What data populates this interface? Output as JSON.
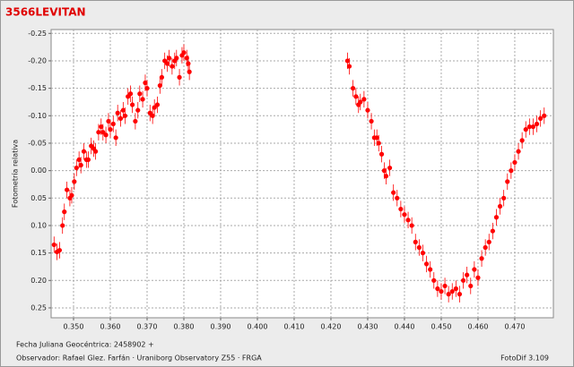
{
  "chart_data": {
    "type": "scatter",
    "title": "3566LEVITAN",
    "y_label": "Fotometría relativa",
    "x_label": "Fecha Juliana Geocéntrica: 2458902 +",
    "footer": "Observador: Rafael Glez. Farfán  ·  Uraniborg Observatory Z55 · FRGA",
    "software": "FotoDif 3.109",
    "color": "#ff0000",
    "error": 0.015,
    "y_inverted": true,
    "grid": true,
    "xlim": [
      0.3439,
      0.4805
    ],
    "ylim": [
      -0.257,
      0.268
    ],
    "xticks": [
      {
        "value": 0.35,
        "label": "0.350"
      },
      {
        "value": 0.36,
        "label": "0.360"
      },
      {
        "value": 0.37,
        "label": "0.370"
      },
      {
        "value": 0.38,
        "label": "0.380"
      },
      {
        "value": 0.39,
        "label": "0.390"
      },
      {
        "value": 0.4,
        "label": "0.400"
      },
      {
        "value": 0.41,
        "label": "0.410"
      },
      {
        "value": 0.42,
        "label": "0.420"
      },
      {
        "value": 0.43,
        "label": "0.430"
      },
      {
        "value": 0.44,
        "label": "0.440"
      },
      {
        "value": 0.45,
        "label": "0.450"
      },
      {
        "value": 0.46,
        "label": "0.460"
      },
      {
        "value": 0.47,
        "label": "0.470"
      }
    ],
    "yticks": [
      -0.25,
      {
        "value": -0.2,
        "label": "-0.20"
      },
      -0.15,
      {
        "value": -0.1,
        "label": "-0.10"
      },
      -0.05,
      {
        "value": 0,
        "label": "0.00"
      },
      0.05,
      {
        "value": 0.1,
        "label": "0.10"
      },
      0.15,
      {
        "value": 0.2,
        "label": "0.20"
      },
      0.25
    ],
    "x": [
      0.3447,
      0.3455,
      0.3462,
      0.347,
      0.3475,
      0.3482,
      0.349,
      0.3495,
      0.3502,
      0.3508,
      0.3515,
      0.352,
      0.3528,
      0.3535,
      0.354,
      0.3548,
      0.3555,
      0.356,
      0.3568,
      0.3575,
      0.358,
      0.3588,
      0.3595,
      0.36,
      0.3608,
      0.3615,
      0.362,
      0.3628,
      0.3635,
      0.364,
      0.3648,
      0.3655,
      0.366,
      0.3668,
      0.3675,
      0.368,
      0.3688,
      0.3695,
      0.37,
      0.3708,
      0.3715,
      0.372,
      0.3728,
      0.3735,
      0.374,
      0.3748,
      0.3755,
      0.376,
      0.3768,
      0.3775,
      0.378,
      0.3788,
      0.3795,
      0.38,
      0.3808,
      0.3812,
      0.3815,
      0.4245,
      0.425,
      0.426,
      0.4268,
      0.4275,
      0.428,
      0.429,
      0.43,
      0.431,
      0.4318,
      0.4325,
      0.433,
      0.4338,
      0.4345,
      0.435,
      0.436,
      0.437,
      0.438,
      0.439,
      0.44,
      0.441,
      0.442,
      0.443,
      0.444,
      0.445,
      0.446,
      0.447,
      0.448,
      0.449,
      0.45,
      0.451,
      0.452,
      0.453,
      0.454,
      0.455,
      0.456,
      0.457,
      0.458,
      0.459,
      0.46,
      0.461,
      0.462,
      0.463,
      0.464,
      0.465,
      0.466,
      0.467,
      0.468,
      0.469,
      0.47,
      0.471,
      0.472,
      0.473,
      0.474,
      0.475,
      0.476,
      0.477,
      0.478
    ],
    "values": [
      0.135,
      0.148,
      0.145,
      0.1,
      0.075,
      0.035,
      0.05,
      0.045,
      0.02,
      -0.005,
      -0.02,
      -0.01,
      -0.035,
      -0.02,
      -0.02,
      -0.045,
      -0.04,
      -0.035,
      -0.07,
      -0.08,
      -0.07,
      -0.065,
      -0.09,
      -0.075,
      -0.085,
      -0.06,
      -0.105,
      -0.095,
      -0.11,
      -0.1,
      -0.135,
      -0.14,
      -0.12,
      -0.09,
      -0.11,
      -0.14,
      -0.13,
      -0.16,
      -0.15,
      -0.105,
      -0.1,
      -0.115,
      -0.12,
      -0.155,
      -0.17,
      -0.2,
      -0.195,
      -0.205,
      -0.19,
      -0.2,
      -0.205,
      -0.17,
      -0.21,
      -0.215,
      -0.205,
      -0.195,
      -0.18,
      -0.2,
      -0.19,
      -0.15,
      -0.135,
      -0.12,
      -0.125,
      -0.13,
      -0.11,
      -0.09,
      -0.06,
      -0.06,
      -0.05,
      -0.03,
      0,
      0.01,
      -0.005,
      0.04,
      0.05,
      0.07,
      0.08,
      0.09,
      0.1,
      0.13,
      0.14,
      0.15,
      0.17,
      0.18,
      0.2,
      0.215,
      0.22,
      0.21,
      0.225,
      0.22,
      0.215,
      0.225,
      0.2,
      0.19,
      0.21,
      0.18,
      0.195,
      0.16,
      0.14,
      0.13,
      0.11,
      0.085,
      0.065,
      0.05,
      0.02,
      0,
      -0.015,
      -0.035,
      -0.055,
      -0.075,
      -0.08,
      -0.08,
      -0.085,
      -0.095,
      -0.1
    ]
  }
}
